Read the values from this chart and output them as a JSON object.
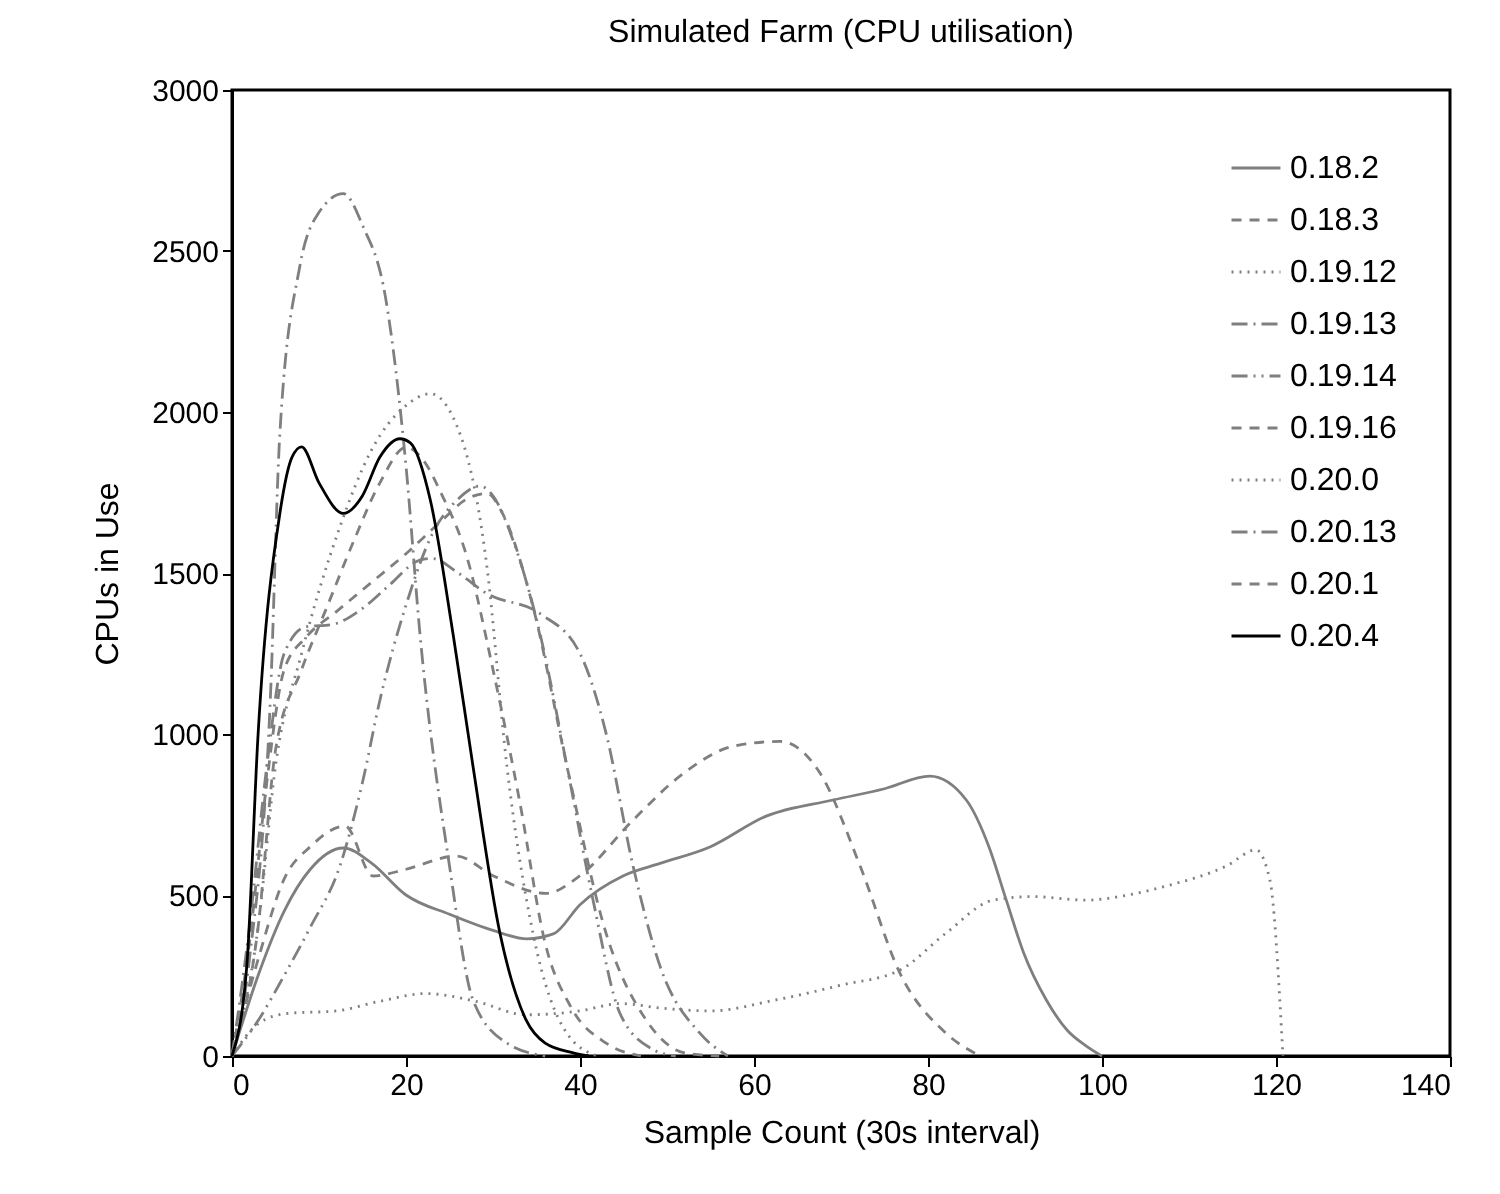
{
  "chart_data": {
    "type": "line",
    "title": "Simulated Farm (CPU utilisation)",
    "xlabel": "Sample Count (30s interval)",
    "ylabel": "CPUs in Use",
    "xlim": [
      0,
      140
    ],
    "xticks": [
      0,
      20,
      40,
      60,
      80,
      100,
      120,
      140
    ],
    "ylim": [
      0,
      3000
    ],
    "yticks": [
      0,
      500,
      1000,
      1500,
      2000,
      2500,
      3000
    ],
    "grid": false,
    "legend": "top right",
    "marker": "none",
    "series": [
      {
        "name": "0.18.2",
        "color": "#7f7f7f",
        "line_style": "solid",
        "x": [
          0,
          3,
          6,
          9,
          12.8,
          16,
          20,
          25,
          30,
          33.9,
          37,
          40,
          45,
          49.2,
          55,
          61.4,
          69.1,
          75,
          80.2,
          84.4,
          87,
          89,
          91,
          93.6,
          96,
          98.2,
          100
        ],
        "values": [
          0,
          250,
          450,
          580,
          646,
          600,
          500,
          440,
          390,
          364,
          380,
          470,
          560,
          598,
          650,
          745,
          795,
          830,
          869,
          795,
          650,
          484,
          320,
          174,
          80,
          31,
          0
        ]
      },
      {
        "name": "0.18.3",
        "color": "#7f7f7f",
        "line_style": "dashed",
        "x": [
          0,
          3,
          6,
          9,
          13,
          16.2,
          20,
          25.8,
          30,
          36.1,
          40,
          46.1,
          52,
          57.6,
          63,
          67.6,
          72.2,
          76.8,
          82.1,
          86
        ],
        "values": [
          0,
          300,
          550,
          650,
          714,
          559,
          580,
          621,
          560,
          505,
          560,
          733,
          880,
          962,
          977,
          878,
          590,
          256,
          70,
          0
        ]
      },
      {
        "name": "0.19.12",
        "color": "#7f7f7f",
        "line_style": "dotted",
        "x": [
          0,
          3,
          6.3,
          12,
          17,
          22.3,
          28,
          33.8,
          40,
          44.6,
          49.2,
          55,
          62.5,
          70,
          76.8,
          82,
          87.5,
          92,
          98.2,
          103,
          107.4,
          114.3,
          117.7,
          119.3,
          120.8
        ],
        "values": [
          0,
          100,
          132,
          140,
          170,
          194,
          170,
          128,
          140,
          163,
          149,
          140,
          174,
          220,
          267,
          380,
          484,
          495,
          484,
          500,
          528,
          590,
          640,
          546,
          0
        ]
      },
      {
        "name": "0.19.13",
        "color": "#7f7f7f",
        "line_style": "dashdot",
        "x": [
          0,
          2,
          4,
          6,
          8.5,
          11.5,
          15,
          18,
          21.6,
          23,
          26,
          29.3,
          35.4,
          40,
          43,
          46.1,
          49.2,
          53.8,
          57
        ],
        "values": [
          0,
          400,
          900,
          1250,
          1333,
          1340,
          1390,
          1460,
          1540,
          1545,
          1500,
          1436,
          1374,
          1250,
          1002,
          590,
          279,
          70,
          0
        ]
      },
      {
        "name": "0.19.14",
        "color": "#7f7f7f",
        "line_style": "dashdotdot",
        "x": [
          0,
          3,
          6,
          9,
          12.4,
          15,
          17,
          20,
          23,
          26,
          28.5,
          30,
          32.3,
          35.4,
          38.5,
          41.5,
          44.6,
          48.4,
          51
        ],
        "values": [
          0,
          110,
          250,
          400,
          590,
          850,
          1105,
          1400,
          1620,
          1730,
          1770,
          1740,
          1602,
          1312,
          900,
          484,
          132,
          20,
          0
        ]
      },
      {
        "name": "0.19.16",
        "color": "#7f7f7f",
        "line_style": "dashed",
        "x": [
          0,
          2,
          4,
          6,
          8.5,
          12,
          16,
          20,
          24,
          27,
          29.3,
          31,
          34.6,
          38.5,
          43,
          47.6,
          52,
          56
        ],
        "values": [
          0,
          350,
          850,
          1200,
          1300,
          1380,
          1470,
          1560,
          1660,
          1730,
          1747,
          1690,
          1395,
          900,
          381,
          112,
          10,
          0
        ]
      },
      {
        "name": "0.20.0",
        "color": "#7f7f7f",
        "line_style": "dotted",
        "x": [
          0,
          3,
          5,
          8,
          12.4,
          16,
          20,
          22.8,
          25.8,
          29.3,
          31.6,
          34.6,
          38.5,
          42
        ],
        "values": [
          0,
          400,
          900,
          1250,
          1643,
          1880,
          2020,
          2057,
          1960,
          1520,
          900,
          381,
          70,
          0
        ]
      },
      {
        "name": "0.20.13",
        "color": "#7f7f7f",
        "line_style": "dashdot",
        "x": [
          0,
          2,
          4.4,
          5.5,
          7.8,
          10,
          12.8,
          15,
          17.7,
          20,
          21.6,
          25,
          27.7,
          31.6,
          36
        ],
        "values": [
          0,
          300,
          1105,
          1933,
          2453,
          2620,
          2678,
          2580,
          2347,
          1832,
          1312,
          590,
          174,
          40,
          0
        ]
      },
      {
        "name": "0.20.1",
        "color": "#7f7f7f",
        "line_style": "dashed",
        "x": [
          0,
          3,
          5,
          8,
          11,
          14,
          17,
          20,
          22,
          24,
          27,
          30,
          33,
          36,
          39,
          43,
          47
        ],
        "values": [
          0,
          400,
          950,
          1200,
          1400,
          1600,
          1780,
          1890,
          1850,
          1750,
          1550,
          1200,
          800,
          350,
          150,
          40,
          0
        ]
      },
      {
        "name": "0.20.4",
        "color": "#000000",
        "line_style": "solid",
        "x": [
          0,
          1.7,
          3,
          5.5,
          6.9,
          8,
          10,
          12.8,
          15,
          17,
          19.3,
          20.5,
          22.8,
          25.4,
          27.7,
          30.8,
          33.8,
          36,
          39.2,
          41
        ],
        "values": [
          0,
          280,
          1000,
          1685,
          1860,
          1892,
          1780,
          1685,
          1740,
          1860,
          1917,
          1904,
          1726,
          1312,
          900,
          381,
          112,
          40,
          10,
          0
        ]
      }
    ]
  }
}
